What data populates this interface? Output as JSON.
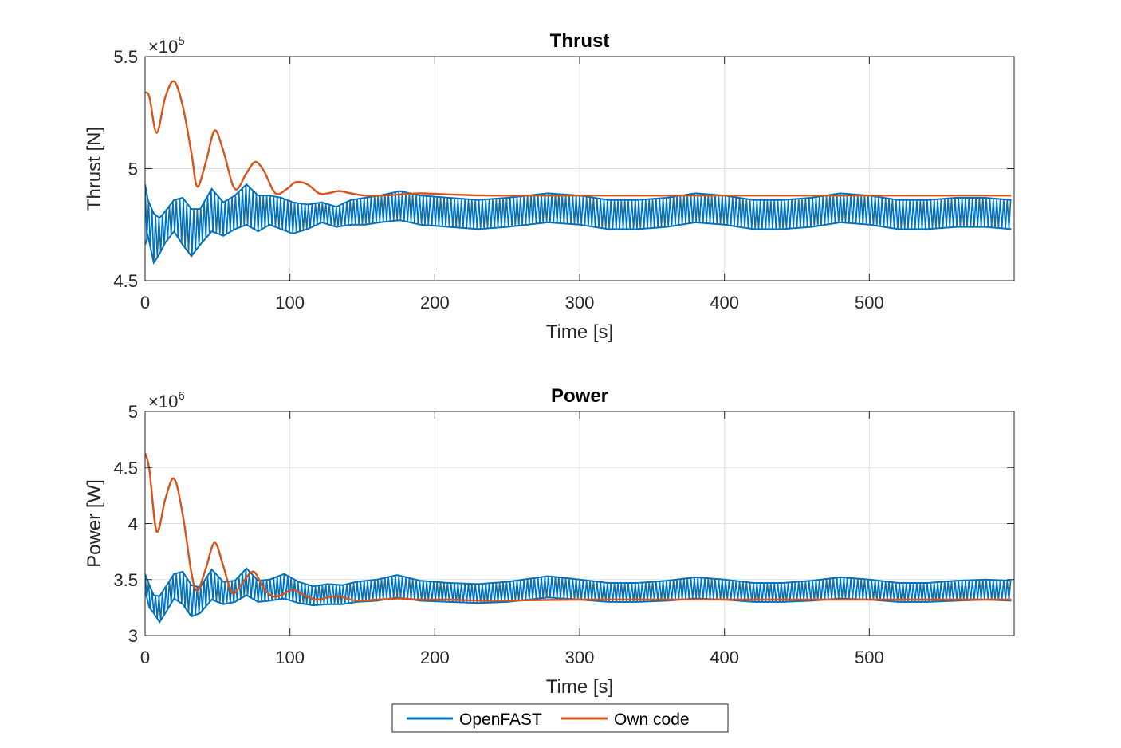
{
  "colors": {
    "openfast": "#0072BD",
    "own_code": "#D95319",
    "grid": "#DFDFDF",
    "axis": "#262626"
  },
  "legend": {
    "placement": "bottom-center",
    "entries": [
      "OpenFAST",
      "Own code"
    ]
  },
  "chart_data": [
    {
      "type": "line",
      "title": "Thrust",
      "xlabel": "Time [s]",
      "ylabel": "Thrust [N]",
      "exponent_label": "×10",
      "exponent": "5",
      "xlim": [
        0,
        600
      ],
      "ylim": [
        4.5,
        5.5
      ],
      "xticks": [
        0,
        100,
        200,
        300,
        400,
        500
      ],
      "yticks": [
        4.5,
        5,
        5.5
      ],
      "grid": true,
      "series": [
        {
          "name": "OpenFAST",
          "style": "band",
          "x": [
            0,
            2,
            6,
            10,
            14,
            20,
            26,
            32,
            38,
            46,
            54,
            62,
            70,
            78,
            86,
            94,
            102,
            112,
            122,
            132,
            142,
            152,
            162,
            176,
            190,
            210,
            230,
            250,
            278,
            300,
            320,
            340,
            360,
            380,
            400,
            420,
            440,
            460,
            480,
            500,
            520,
            540,
            560,
            580,
            598
          ],
          "upper": [
            4.93,
            4.86,
            4.8,
            4.78,
            4.81,
            4.86,
            4.87,
            4.82,
            4.82,
            4.91,
            4.85,
            4.88,
            4.93,
            4.88,
            4.88,
            4.87,
            4.85,
            4.84,
            4.85,
            4.83,
            4.86,
            4.87,
            4.88,
            4.9,
            4.88,
            4.87,
            4.86,
            4.87,
            4.89,
            4.88,
            4.86,
            4.86,
            4.87,
            4.89,
            4.88,
            4.86,
            4.86,
            4.87,
            4.89,
            4.88,
            4.86,
            4.86,
            4.87,
            4.87,
            4.86
          ],
          "lower": [
            4.66,
            4.7,
            4.58,
            4.62,
            4.67,
            4.72,
            4.66,
            4.61,
            4.66,
            4.72,
            4.7,
            4.73,
            4.75,
            4.72,
            4.75,
            4.73,
            4.71,
            4.73,
            4.76,
            4.74,
            4.75,
            4.75,
            4.76,
            4.77,
            4.75,
            4.74,
            4.73,
            4.74,
            4.76,
            4.75,
            4.73,
            4.73,
            4.74,
            4.76,
            4.75,
            4.73,
            4.73,
            4.74,
            4.76,
            4.75,
            4.73,
            4.73,
            4.74,
            4.74,
            4.73
          ]
        },
        {
          "name": "Own code",
          "style": "line",
          "x": [
            0,
            3,
            8,
            14,
            20,
            26,
            32,
            36,
            42,
            48,
            54,
            62,
            70,
            76,
            82,
            90,
            98,
            104,
            112,
            120,
            126,
            134,
            142,
            152,
            164,
            176,
            190,
            210,
            240,
            300,
            400,
            500,
            598
          ],
          "values": [
            5.34,
            5.32,
            5.16,
            5.32,
            5.39,
            5.28,
            5.07,
            4.92,
            5.03,
            5.17,
            5.08,
            4.91,
            4.98,
            5.03,
            4.99,
            4.89,
            4.91,
            4.94,
            4.93,
            4.89,
            4.89,
            4.9,
            4.89,
            4.88,
            4.88,
            4.885,
            4.89,
            4.885,
            4.88,
            4.88,
            4.88,
            4.88,
            4.88
          ]
        }
      ]
    },
    {
      "type": "line",
      "title": "Power",
      "xlabel": "Time [s]",
      "ylabel": "Power [W]",
      "exponent_label": "×10",
      "exponent": "6",
      "xlim": [
        0,
        600
      ],
      "ylim": [
        3,
        5
      ],
      "xticks": [
        0,
        100,
        200,
        300,
        400,
        500
      ],
      "yticks": [
        3,
        3.5,
        4,
        4.5,
        5
      ],
      "grid": true,
      "series": [
        {
          "name": "OpenFAST",
          "style": "band",
          "x": [
            0,
            3,
            6,
            10,
            14,
            20,
            26,
            32,
            38,
            46,
            54,
            62,
            70,
            78,
            86,
            96,
            106,
            116,
            126,
            136,
            146,
            160,
            174,
            190,
            210,
            230,
            250,
            278,
            300,
            320,
            340,
            360,
            380,
            400,
            420,
            440,
            460,
            480,
            500,
            520,
            540,
            560,
            580,
            598
          ],
          "upper": [
            3.55,
            3.45,
            3.36,
            3.35,
            3.43,
            3.55,
            3.57,
            3.45,
            3.43,
            3.59,
            3.48,
            3.49,
            3.6,
            3.49,
            3.5,
            3.55,
            3.48,
            3.44,
            3.46,
            3.45,
            3.48,
            3.5,
            3.54,
            3.49,
            3.47,
            3.46,
            3.48,
            3.53,
            3.5,
            3.47,
            3.47,
            3.49,
            3.52,
            3.5,
            3.47,
            3.47,
            3.49,
            3.52,
            3.5,
            3.47,
            3.47,
            3.49,
            3.5,
            3.49
          ],
          "lower": [
            3.4,
            3.25,
            3.2,
            3.12,
            3.2,
            3.33,
            3.28,
            3.17,
            3.2,
            3.32,
            3.28,
            3.3,
            3.36,
            3.3,
            3.31,
            3.33,
            3.29,
            3.27,
            3.28,
            3.28,
            3.3,
            3.31,
            3.34,
            3.31,
            3.3,
            3.29,
            3.3,
            3.34,
            3.32,
            3.3,
            3.3,
            3.31,
            3.33,
            3.32,
            3.3,
            3.3,
            3.31,
            3.33,
            3.32,
            3.3,
            3.3,
            3.31,
            3.32,
            3.31
          ]
        },
        {
          "name": "Own code",
          "style": "line",
          "x": [
            0,
            3,
            8,
            14,
            20,
            26,
            32,
            36,
            42,
            48,
            54,
            60,
            66,
            72,
            76,
            82,
            88,
            94,
            102,
            110,
            118,
            126,
            134,
            142,
            150,
            160,
            176,
            190,
            210,
            240,
            300,
            400,
            500,
            598
          ],
          "values": [
            4.63,
            4.48,
            3.93,
            4.22,
            4.4,
            4.08,
            3.56,
            3.4,
            3.6,
            3.83,
            3.62,
            3.38,
            3.45,
            3.55,
            3.56,
            3.42,
            3.35,
            3.36,
            3.41,
            3.36,
            3.32,
            3.34,
            3.35,
            3.32,
            3.31,
            3.32,
            3.33,
            3.32,
            3.32,
            3.31,
            3.32,
            3.32,
            3.32,
            3.32
          ]
        }
      ]
    }
  ]
}
